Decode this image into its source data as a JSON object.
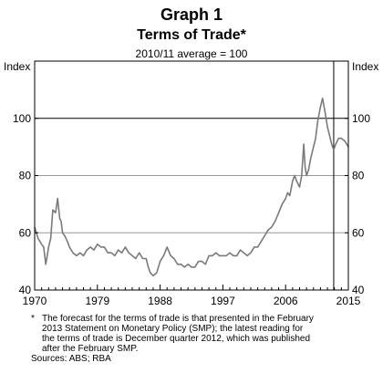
{
  "header": {
    "graph_label": "Graph 1",
    "title": "Terms of Trade*",
    "subtitle": "2010/11 average = 100"
  },
  "chart_data": {
    "type": "line",
    "y_unit_left": "Index",
    "y_unit_right": "Index",
    "xlim": [
      1970,
      2015
    ],
    "ylim": [
      40,
      120
    ],
    "y_ticks": [
      40,
      60,
      80,
      100
    ],
    "x_tick_labels": [
      "1970",
      "1979",
      "1988",
      "1997",
      "2006",
      "2015"
    ],
    "x_tick_values": [
      1970,
      1979,
      1988,
      1997,
      2006,
      2015
    ],
    "gridlines": [
      60,
      80
    ],
    "reference_line_y": 100,
    "forecast_divider_x": 2012.9,
    "color": "#7a7a7a",
    "series": [
      {
        "values_x": [
          1970.0,
          1970.5,
          1971.0,
          1971.3,
          1971.6,
          1971.8,
          1972.0,
          1972.3,
          1972.6,
          1973.0,
          1973.3,
          1973.6,
          1973.8,
          1974.0,
          1974.3,
          1974.7,
          1975.0,
          1975.5,
          1976.0,
          1976.5,
          1977.0,
          1977.5,
          1978.0,
          1978.5,
          1979.0,
          1979.5,
          1980.0,
          1980.5,
          1981.0,
          1981.5,
          1982.0,
          1982.5,
          1983.0,
          1983.5,
          1984.0,
          1984.5,
          1985.0,
          1985.5,
          1986.0,
          1986.3,
          1986.6,
          1987.0,
          1987.5,
          1988.0,
          1988.5,
          1989.0,
          1989.5,
          1990.0,
          1990.5,
          1991.0,
          1991.5,
          1992.0,
          1992.5,
          1993.0,
          1993.5,
          1994.0,
          1994.5,
          1995.0,
          1995.5,
          1996.0,
          1996.5,
          1997.0,
          1997.5,
          1998.0,
          1998.5,
          1999.0,
          1999.5,
          2000.0,
          2000.5,
          2001.0,
          2001.5,
          2002.0,
          2002.5,
          2003.0,
          2003.5,
          2004.0,
          2004.5,
          2005.0,
          2005.5,
          2006.0,
          2006.3,
          2006.6,
          2007.0,
          2007.3,
          2007.6,
          2008.0,
          2008.3,
          2008.6,
          2008.8,
          2009.0,
          2009.3,
          2009.6,
          2010.0,
          2010.3,
          2010.6,
          2011.0,
          2011.3,
          2011.6,
          2012.0,
          2012.3,
          2012.6,
          2012.9,
          2013.2,
          2013.6,
          2014.0,
          2014.5,
          2015.0
        ],
        "values_y": [
          62,
          58,
          56,
          55,
          49,
          52,
          55,
          58,
          68,
          67,
          72,
          65,
          64,
          60,
          59,
          57,
          55,
          53,
          52,
          53,
          52,
          54,
          55,
          54,
          56,
          55,
          55,
          53,
          53,
          52,
          54,
          53,
          55,
          53,
          52,
          51,
          53,
          51,
          51,
          48,
          46,
          45,
          46,
          50,
          52,
          55,
          52,
          51,
          49,
          49,
          48,
          49,
          48,
          48,
          50,
          50,
          49,
          52,
          52,
          53,
          52,
          52,
          52,
          53,
          52,
          52,
          54,
          53,
          52,
          53,
          55,
          55,
          57,
          59,
          61,
          62,
          64,
          67,
          70,
          72,
          74,
          73,
          78,
          80,
          78,
          76,
          80,
          91,
          83,
          80,
          82,
          86,
          90,
          93,
          99,
          104,
          107,
          103,
          97,
          94,
          91,
          89,
          91,
          93,
          93,
          92,
          90
        ]
      }
    ]
  },
  "notes": {
    "star": "*",
    "lines": [
      "The forecast for the terms of trade is that presented in the February",
      "2013 Statement on Monetary Policy (SMP); the latest reading for",
      "the terms of trade is December quarter 2012, which was published",
      "after the February SMP."
    ],
    "sources": "Sources: ABS; RBA"
  }
}
